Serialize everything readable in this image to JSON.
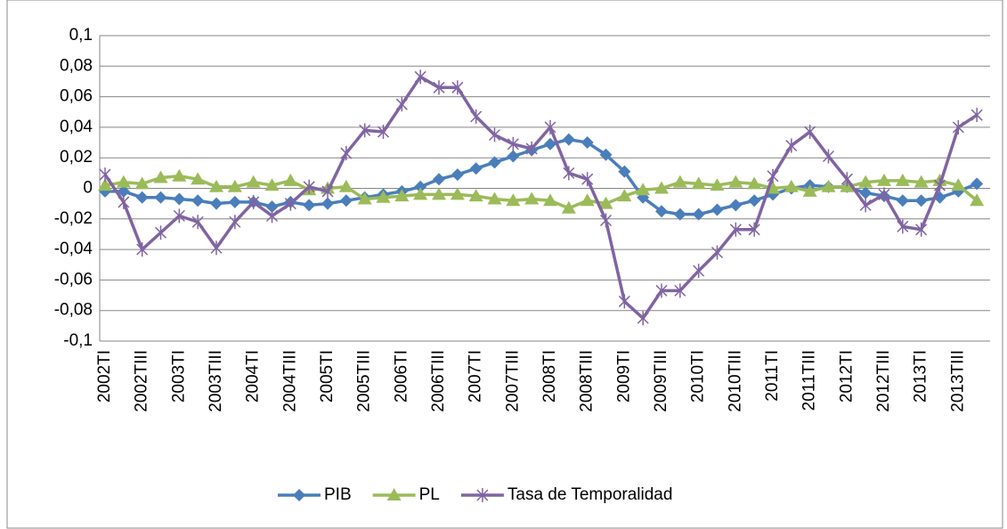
{
  "chart_data": {
    "type": "line",
    "categories": [
      "2002TI",
      null,
      "2002TIII",
      null,
      "2003TI",
      null,
      "2003TIII",
      null,
      "2004TI",
      null,
      "2004TIII",
      null,
      "2005TI",
      null,
      "2005TIII",
      null,
      "2006TI",
      null,
      "2006TIII",
      null,
      "2007TI",
      null,
      "2007TIII",
      null,
      "2008TI",
      null,
      "2008TIII",
      null,
      "2009TI",
      null,
      "2009TIII",
      null,
      "2010TI",
      null,
      "2010TIII",
      null,
      "2011TI",
      null,
      "2011TIII",
      null,
      "2012TI",
      null,
      "2012TIII",
      null,
      "2013TI",
      null,
      "2013TIII",
      null
    ],
    "series": [
      {
        "name": "PIB",
        "color": "#4a7ebb",
        "marker": "diamond",
        "values": [
          -0.002,
          -0.002,
          -0.006,
          -0.006,
          -0.007,
          -0.008,
          -0.01,
          -0.009,
          -0.009,
          -0.012,
          -0.009,
          -0.011,
          -0.01,
          -0.008,
          -0.006,
          -0.004,
          -0.002,
          0.001,
          0.006,
          0.009,
          0.013,
          0.017,
          0.021,
          0.025,
          0.029,
          0.032,
          0.03,
          0.022,
          0.011,
          -0.006,
          -0.015,
          -0.017,
          -0.017,
          -0.014,
          -0.011,
          -0.008,
          -0.004,
          0.0,
          0.002,
          0.001,
          0.001,
          -0.003,
          -0.005,
          -0.008,
          -0.008,
          -0.006,
          -0.002,
          0.003
        ]
      },
      {
        "name": "PL",
        "color": "#9bbb59",
        "marker": "triangle",
        "values": [
          0.002,
          0.004,
          0.003,
          0.007,
          0.008,
          0.006,
          0.001,
          0.001,
          0.004,
          0.002,
          0.005,
          -0.001,
          0.0,
          0.001,
          -0.007,
          -0.006,
          -0.005,
          -0.004,
          -0.004,
          -0.004,
          -0.005,
          -0.007,
          -0.008,
          -0.007,
          -0.008,
          -0.013,
          -0.008,
          -0.01,
          -0.005,
          -0.001,
          0.0,
          0.004,
          0.003,
          0.002,
          0.004,
          0.003,
          0.0,
          0.001,
          -0.002,
          0.001,
          0.001,
          0.004,
          0.005,
          0.005,
          0.004,
          0.005,
          0.002,
          -0.008
        ]
      },
      {
        "name": "Tasa de Temporalidad",
        "color": "#8064a2",
        "marker": "asterisk",
        "values": [
          0.009,
          -0.009,
          -0.04,
          -0.029,
          -0.018,
          -0.022,
          -0.039,
          -0.022,
          -0.009,
          -0.018,
          -0.01,
          0.001,
          -0.002,
          0.023,
          0.038,
          0.037,
          0.055,
          0.073,
          0.066,
          0.066,
          0.047,
          0.035,
          0.029,
          0.026,
          0.04,
          0.01,
          0.006,
          -0.021,
          -0.074,
          -0.085,
          -0.067,
          -0.067,
          -0.054,
          -0.042,
          -0.027,
          -0.027,
          0.008,
          0.028,
          0.037,
          0.021,
          0.006,
          -0.011,
          -0.004,
          -0.025,
          -0.027,
          0.002,
          0.04,
          0.048
        ]
      }
    ],
    "ylim": [
      -0.1,
      0.1
    ],
    "yticks": [
      {
        "value": -0.1,
        "label": "-0,1"
      },
      {
        "value": -0.08,
        "label": "-0,08"
      },
      {
        "value": -0.06,
        "label": "-0,06"
      },
      {
        "value": -0.04,
        "label": "-0,04"
      },
      {
        "value": -0.02,
        "label": "-0,02"
      },
      0,
      {
        "value": 0.02,
        "label": "0,02"
      },
      {
        "value": 0.04,
        "label": "0,04"
      },
      {
        "value": 0.06,
        "label": "0,06"
      },
      {
        "value": 0.08,
        "label": "0,08"
      },
      {
        "value": 0.1,
        "label": "0,1"
      }
    ],
    "grid": true,
    "legend": "bottom"
  }
}
